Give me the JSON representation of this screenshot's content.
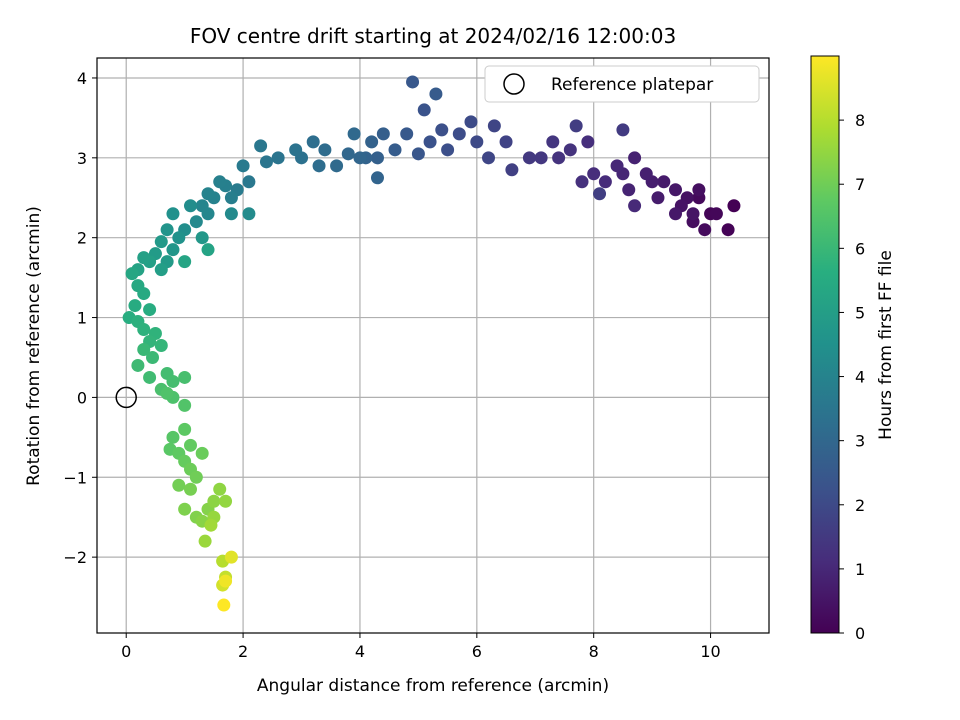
{
  "chart_data": {
    "type": "scatter",
    "title": "FOV centre drift starting at 2024/02/16 12:00:03",
    "xlabel": "Angular distance from reference (arcmin)",
    "ylabel": "Rotation from reference (arcmin)",
    "xlim": [
      -0.5,
      11.0
    ],
    "ylim": [
      -2.95,
      4.25
    ],
    "xticks": [
      0,
      2,
      4,
      6,
      8,
      10
    ],
    "yticks": [
      -2,
      -1,
      0,
      1,
      2,
      3,
      4
    ],
    "grid": true,
    "colormap": "viridis",
    "colorbar": {
      "label": "Hours from first FF file",
      "range": [
        0,
        9.0
      ],
      "ticks": [
        0,
        1,
        2,
        3,
        4,
        5,
        6,
        7,
        8
      ]
    },
    "legend": {
      "placement": "top-right",
      "entries": [
        "Reference platepar"
      ]
    },
    "reference_point": {
      "x": 0,
      "y": 0,
      "label": "Reference platepar"
    },
    "points": [
      [
        10.4,
        2.4,
        0.0
      ],
      [
        10.3,
        2.1,
        0.05
      ],
      [
        10.0,
        2.3,
        0.1
      ],
      [
        10.1,
        2.3,
        0.15
      ],
      [
        9.8,
        2.5,
        0.2
      ],
      [
        9.9,
        2.1,
        0.25
      ],
      [
        9.7,
        2.2,
        0.3
      ],
      [
        9.8,
        2.6,
        0.35
      ],
      [
        9.6,
        2.5,
        0.4
      ],
      [
        9.5,
        2.4,
        0.45
      ],
      [
        9.7,
        2.3,
        0.5
      ],
      [
        9.4,
        2.6,
        0.55
      ],
      [
        9.4,
        2.3,
        0.6
      ],
      [
        9.2,
        2.7,
        0.65
      ],
      [
        9.1,
        2.5,
        0.7
      ],
      [
        9.0,
        2.7,
        0.75
      ],
      [
        8.9,
        2.8,
        0.8
      ],
      [
        8.7,
        3.0,
        0.85
      ],
      [
        8.6,
        2.6,
        0.9
      ],
      [
        8.5,
        2.8,
        0.95
      ],
      [
        8.4,
        2.9,
        1.0
      ],
      [
        8.7,
        2.4,
        1.05
      ],
      [
        8.2,
        2.7,
        1.1
      ],
      [
        8.0,
        2.8,
        1.15
      ],
      [
        7.9,
        3.2,
        1.2
      ],
      [
        7.8,
        2.7,
        1.25
      ],
      [
        7.6,
        3.1,
        1.3
      ],
      [
        7.4,
        3.0,
        1.35
      ],
      [
        7.3,
        3.2,
        1.4
      ],
      [
        7.1,
        3.0,
        1.45
      ],
      [
        6.9,
        3.0,
        1.5
      ],
      [
        8.5,
        3.35,
        1.55
      ],
      [
        7.7,
        3.4,
        1.6
      ],
      [
        8.1,
        2.55,
        1.65
      ],
      [
        6.6,
        2.85,
        1.7
      ],
      [
        6.5,
        3.2,
        1.8
      ],
      [
        6.3,
        3.4,
        1.85
      ],
      [
        6.2,
        3.0,
        1.9
      ],
      [
        6.0,
        3.2,
        2.0
      ],
      [
        5.9,
        3.45,
        2.05
      ],
      [
        5.7,
        3.3,
        2.1
      ],
      [
        5.5,
        3.1,
        2.15
      ],
      [
        5.4,
        3.35,
        2.2
      ],
      [
        5.2,
        3.2,
        2.25
      ],
      [
        5.1,
        3.6,
        2.3
      ],
      [
        5.0,
        3.05,
        2.4
      ],
      [
        4.9,
        3.95,
        2.45
      ],
      [
        4.8,
        3.3,
        2.5
      ],
      [
        5.3,
        3.8,
        2.55
      ],
      [
        4.6,
        3.1,
        2.6
      ],
      [
        4.4,
        3.3,
        2.7
      ],
      [
        4.3,
        3.0,
        2.75
      ],
      [
        4.2,
        3.2,
        2.8
      ],
      [
        4.1,
        3.0,
        2.85
      ],
      [
        4.3,
        2.75,
        2.9
      ],
      [
        4.0,
        3.0,
        2.95
      ],
      [
        3.8,
        3.05,
        3.0
      ],
      [
        3.9,
        3.3,
        3.05
      ],
      [
        3.6,
        2.9,
        3.1
      ],
      [
        3.4,
        3.1,
        3.15
      ],
      [
        3.3,
        2.9,
        3.2
      ],
      [
        3.2,
        3.2,
        3.25
      ],
      [
        3.0,
        3.0,
        3.35
      ],
      [
        2.9,
        3.1,
        3.4
      ],
      [
        2.6,
        3.0,
        3.45
      ],
      [
        2.4,
        2.95,
        3.5
      ],
      [
        2.3,
        3.15,
        3.55
      ],
      [
        2.1,
        2.7,
        3.6
      ],
      [
        2.0,
        2.9,
        3.65
      ],
      [
        1.9,
        2.6,
        3.7
      ],
      [
        1.8,
        2.5,
        3.8
      ],
      [
        1.7,
        2.65,
        3.85
      ],
      [
        1.6,
        2.7,
        3.9
      ],
      [
        1.5,
        2.5,
        3.95
      ],
      [
        1.4,
        2.55,
        4.0
      ],
      [
        1.3,
        2.4,
        4.05
      ],
      [
        1.4,
        2.3,
        4.1
      ],
      [
        1.2,
        2.2,
        4.2
      ],
      [
        1.8,
        2.3,
        4.25
      ],
      [
        2.1,
        2.3,
        4.3
      ],
      [
        1.1,
        2.4,
        4.35
      ],
      [
        1.0,
        2.1,
        4.4
      ],
      [
        0.8,
        2.3,
        4.5
      ],
      [
        0.9,
        2.0,
        4.55
      ],
      [
        0.7,
        2.1,
        4.6
      ],
      [
        0.8,
        1.85,
        4.7
      ],
      [
        1.3,
        2.0,
        4.75
      ],
      [
        0.6,
        1.95,
        4.8
      ],
      [
        0.7,
        1.7,
        4.85
      ],
      [
        0.5,
        1.8,
        4.9
      ],
      [
        0.6,
        1.6,
        5.0
      ],
      [
        0.4,
        1.7,
        5.05
      ],
      [
        0.3,
        1.75,
        5.1
      ],
      [
        0.2,
        1.6,
        5.15
      ],
      [
        1.4,
        1.85,
        5.2
      ],
      [
        1.0,
        1.7,
        5.25
      ],
      [
        0.1,
        1.55,
        5.3
      ],
      [
        0.2,
        1.4,
        5.4
      ],
      [
        0.3,
        1.3,
        5.45
      ],
      [
        0.15,
        1.15,
        5.5
      ],
      [
        0.4,
        1.1,
        5.55
      ],
      [
        0.05,
        1.0,
        5.6
      ],
      [
        0.2,
        0.95,
        5.7
      ],
      [
        0.3,
        0.85,
        5.75
      ],
      [
        0.5,
        0.8,
        5.8
      ],
      [
        0.4,
        0.7,
        5.85
      ],
      [
        0.6,
        0.65,
        5.9
      ],
      [
        0.3,
        0.6,
        6.0
      ],
      [
        0.45,
        0.5,
        6.05
      ],
      [
        0.2,
        0.4,
        6.1
      ],
      [
        0.4,
        0.25,
        6.15
      ],
      [
        0.7,
        0.3,
        6.2
      ],
      [
        0.8,
        0.2,
        6.25
      ],
      [
        1.0,
        0.25,
        6.3
      ],
      [
        0.6,
        0.1,
        6.35
      ],
      [
        0.8,
        0.0,
        6.4
      ],
      [
        0.7,
        0.05,
        6.45
      ],
      [
        1.0,
        -0.1,
        6.5
      ],
      [
        0.8,
        -0.5,
        6.6
      ],
      [
        0.75,
        -0.65,
        6.65
      ],
      [
        1.0,
        -0.4,
        6.7
      ],
      [
        0.9,
        -0.7,
        6.75
      ],
      [
        1.1,
        -0.6,
        6.8
      ],
      [
        1.0,
        -0.8,
        6.85
      ],
      [
        1.3,
        -0.7,
        6.9
      ],
      [
        1.1,
        -0.9,
        6.95
      ],
      [
        1.2,
        -1.0,
        7.0
      ],
      [
        0.9,
        -1.1,
        7.05
      ],
      [
        1.1,
        -1.15,
        7.1
      ],
      [
        1.0,
        -1.4,
        7.2
      ],
      [
        1.2,
        -1.5,
        7.25
      ],
      [
        1.4,
        -1.4,
        7.3
      ],
      [
        1.3,
        -1.55,
        7.35
      ],
      [
        1.5,
        -1.3,
        7.4
      ],
      [
        1.6,
        -1.15,
        7.45
      ],
      [
        1.7,
        -1.3,
        7.5
      ],
      [
        1.5,
        -1.5,
        7.55
      ],
      [
        1.35,
        -1.8,
        7.6
      ],
      [
        1.45,
        -1.6,
        7.7
      ],
      [
        1.65,
        -2.05,
        8.0
      ],
      [
        1.7,
        -2.25,
        8.2
      ],
      [
        1.65,
        -2.35,
        8.4
      ],
      [
        1.8,
        -2.0,
        8.6
      ],
      [
        1.7,
        -2.3,
        8.8
      ],
      [
        1.67,
        -2.6,
        9.0
      ]
    ]
  }
}
